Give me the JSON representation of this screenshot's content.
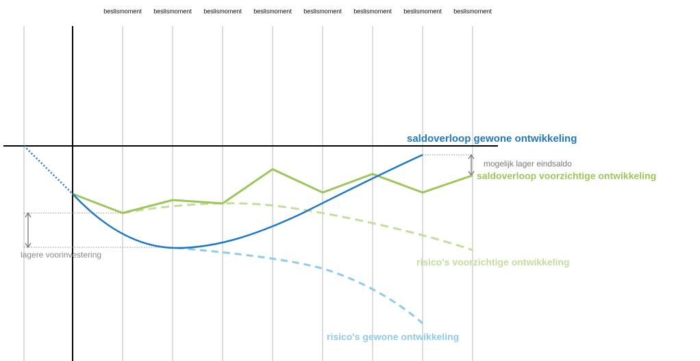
{
  "decision_labels": [
    "beslismoment",
    "beslismoment",
    "beslismoment",
    "beslismoment",
    "beslismoment",
    "beslismoment",
    "beslismoment",
    "beslismoment"
  ],
  "labels": {
    "regular_balance": "saldoverloop gewone ontwikkeling",
    "cautious_balance": "saldoverloop voorzichtige ontwikkeling",
    "cautious_risks": "risico's voorzichtige ontwikkeling",
    "regular_risks": "risico's gewone ontwikkeling",
    "lower_end_balance": "mogelijk lager eindsaldo",
    "lower_investment": "lagere voorinvestering"
  }
}
